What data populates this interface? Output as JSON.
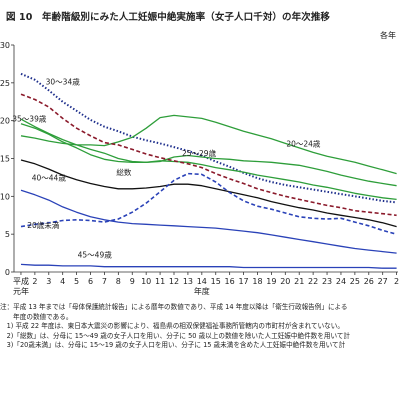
{
  "figure_title": "図 10　年齢階級別にみた人工妊娠中絶実施率（女子人口千対）の年次推移",
  "unit_note": "各年",
  "chart_data": {
    "type": "line",
    "title": "図 10　年齢階級別にみた人工妊娠中絶実施率（女子人口千対）の年次推移",
    "xlabel": "年度",
    "ylabel": "",
    "x": [
      1,
      2,
      3,
      4,
      5,
      6,
      7,
      8,
      9,
      10,
      11,
      12,
      13,
      14,
      15,
      16,
      17,
      18,
      19,
      20,
      21,
      22,
      23,
      24,
      25,
      26,
      27,
      28
    ],
    "x_tick_labels": [
      "平成\n元年",
      "2",
      "3",
      "4",
      "5",
      "6",
      "7",
      "8",
      "9",
      "10",
      "11",
      "12",
      "13",
      "14",
      "15",
      "16",
      "17",
      "18",
      "19",
      "20",
      "21",
      "22",
      "23",
      "24",
      "25",
      "26",
      "27",
      "2"
    ],
    "ylim": [
      0,
      30
    ],
    "y_ticks": [
      "0",
      "5",
      "10",
      "15",
      "20",
      "25",
      "30"
    ],
    "grid": false,
    "legend": "inline labels",
    "series": [
      {
        "name": "30～34歳",
        "color": "#1e2f8c",
        "dash": "dotted",
        "values": [
          26.2,
          25.4,
          24.0,
          22.5,
          21.3,
          20.1,
          19.2,
          18.6,
          17.9,
          17.4,
          17.0,
          16.5,
          16.0,
          15.4,
          14.6,
          13.9,
          13.1,
          12.4,
          11.9,
          11.5,
          11.2,
          10.9,
          10.6,
          10.3,
          10.0,
          9.7,
          9.4,
          9.2
        ]
      },
      {
        "name": "35～39歳",
        "color": "#2e9e3a",
        "dash": "solid",
        "values": [
          20.2,
          19.2,
          18.3,
          17.5,
          16.8,
          16.2,
          15.7,
          15.0,
          14.6,
          14.5,
          14.7,
          14.6,
          14.5,
          14.2,
          13.8,
          13.5,
          13.2,
          12.8,
          12.5,
          12.2,
          11.9,
          11.5,
          11.2,
          10.8,
          10.4,
          10.1,
          9.8,
          9.6
        ]
      },
      {
        "name": "20～24歳",
        "color": "#2e9e3a",
        "dash": "solid",
        "values": [
          18.0,
          17.7,
          17.3,
          17.0,
          16.8,
          16.8,
          16.7,
          17.2,
          17.8,
          19.0,
          20.4,
          20.7,
          20.5,
          20.3,
          19.8,
          19.2,
          18.6,
          18.1,
          17.6,
          17.0,
          16.4,
          15.8,
          15.3,
          14.9,
          14.5,
          14.0,
          13.5,
          13.0
        ]
      },
      {
        "name": "25～29歳",
        "color": "#2e9e3a",
        "dash": "solid",
        "values": [
          19.6,
          19.0,
          18.2,
          17.2,
          16.4,
          15.5,
          14.9,
          14.6,
          14.5,
          14.5,
          14.6,
          15.2,
          15.4,
          15.2,
          15.0,
          14.9,
          14.7,
          14.6,
          14.5,
          14.3,
          14.1,
          13.7,
          13.3,
          12.8,
          12.4,
          12.0,
          11.7,
          11.4
        ]
      },
      {
        "name": "総数",
        "color": "#8b1a2b",
        "dash": "dashed",
        "values": [
          23.5,
          22.8,
          21.8,
          20.3,
          19.0,
          18.0,
          17.1,
          16.8,
          16.2,
          15.6,
          15.1,
          14.7,
          14.3,
          13.8,
          13.0,
          12.3,
          11.7,
          11.0,
          10.5,
          10.0,
          9.6,
          9.2,
          8.8,
          8.5,
          8.1,
          7.9,
          7.7,
          7.5
        ]
      },
      {
        "name": "40～44歳",
        "color": "#111111",
        "dash": "solid",
        "values": [
          14.8,
          14.3,
          13.6,
          12.8,
          12.2,
          11.7,
          11.3,
          11.0,
          11.0,
          11.1,
          11.3,
          11.6,
          11.6,
          11.4,
          11.0,
          10.6,
          10.2,
          9.8,
          9.3,
          8.9,
          8.5,
          8.2,
          7.8,
          7.5,
          7.2,
          6.9,
          6.5,
          6.0
        ]
      },
      {
        "name": "20歳未満",
        "color": "#2a42b8",
        "dash": "dashed",
        "values": [
          6.0,
          6.3,
          6.5,
          6.8,
          6.9,
          6.8,
          6.6,
          7.0,
          7.9,
          9.1,
          10.6,
          12.1,
          13.0,
          12.9,
          11.9,
          10.5,
          9.4,
          8.7,
          8.3,
          7.8,
          7.3,
          7.1,
          7.0,
          7.1,
          6.6,
          6.1,
          5.5,
          5.0
        ]
      },
      {
        "name": "45～49歳",
        "color": "#2a42b8",
        "dash": "solid",
        "values": [
          1.0,
          0.9,
          0.9,
          0.8,
          0.8,
          0.8,
          0.7,
          0.7,
          0.7,
          0.7,
          0.7,
          0.7,
          0.7,
          0.7,
          0.7,
          0.7,
          0.6,
          0.6,
          0.6,
          0.6,
          0.6,
          0.6,
          0.6,
          0.6,
          0.6,
          0.6,
          0.5,
          0.5
        ]
      },
      {
        "name": "",
        "color": "#2a42b8",
        "dash": "solid",
        "values": [
          10.8,
          10.2,
          9.5,
          8.6,
          7.9,
          7.3,
          6.9,
          6.6,
          6.4,
          6.3,
          6.2,
          6.1,
          6.0,
          5.9,
          5.8,
          5.6,
          5.4,
          5.2,
          4.9,
          4.6,
          4.3,
          4.0,
          3.7,
          3.4,
          3.1,
          2.9,
          2.7,
          2.5
        ]
      }
    ]
  },
  "notes": [
    "注：平成 13 年までは「母体保護統計報告」による暦年の数値であり、平成 14 年度以降は「衛生行政報告例」による",
    "　　年度の数値である。",
    "　1) 平成 22 年度は、東日本大震災の影響により、福島県の相双保健福祉事務所管轄内の市町村が含まれていない。",
    "　2)「総数」は、分母に 15～49 歳の女子人口を用い、分子に 50 歳以上の数値を除いた人工妊娠中絶件数を用いて計",
    "　3)「20歳未満」は、分母に 15～19 歳の女子人口を用い、分子に 15 歳未満を含めた人工妊娠中絶件数を用いて計"
  ]
}
